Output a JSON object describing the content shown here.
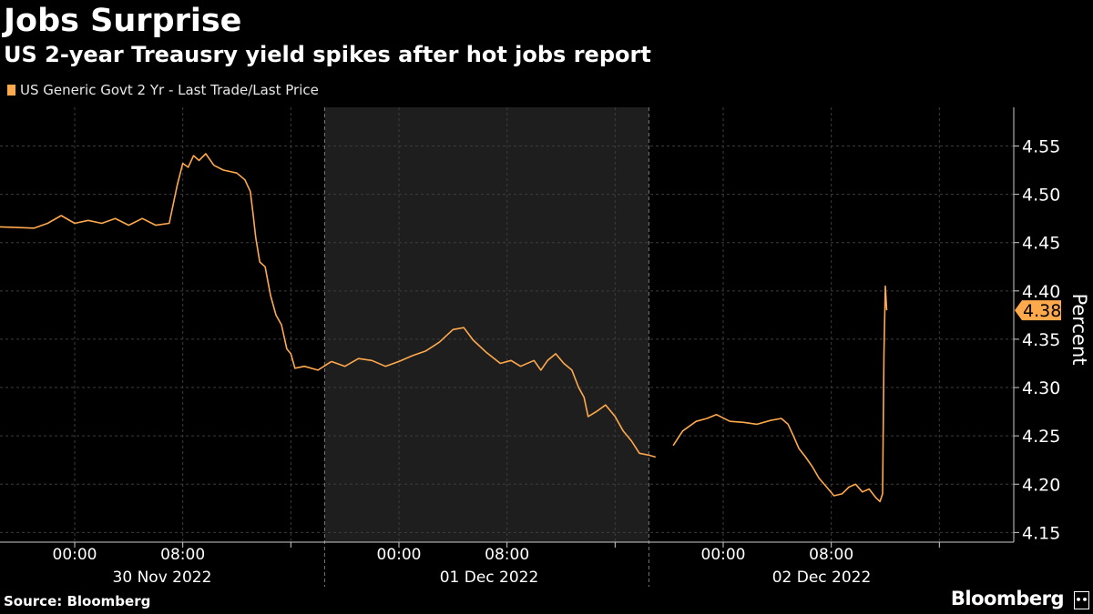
{
  "header": {
    "title": "Jobs Surprise",
    "subtitle": "US 2-year Treausry yield spikes after hot jobs report"
  },
  "footer": {
    "source": "Source: Bloomberg",
    "brand": "Bloomberg",
    "brand_mark": "••"
  },
  "colors": {
    "background": "#000000",
    "series": "#ffa94d",
    "shaded_day": "#1e1e1e",
    "grid": "#3c3c3c",
    "text": "#ffffff"
  },
  "chart_data": {
    "type": "line",
    "title": "Jobs Surprise",
    "subtitle": "US 2-year Treausry yield spikes after hot jobs report",
    "ylabel": "Percent",
    "ylim": [
      4.14,
      4.59
    ],
    "y_ticks": [
      "4.15",
      "4.20",
      "4.25",
      "4.30",
      "4.35",
      "4.40",
      "4.45",
      "4.50",
      "4.55"
    ],
    "x_ticks": [
      {
        "label": "00:00",
        "day": "30 Nov 2022"
      },
      {
        "label": "08:00",
        "day": "30 Nov 2022"
      },
      {
        "label": "00:00",
        "day": "01 Dec 2022"
      },
      {
        "label": "08:00",
        "day": "01 Dec 2022"
      },
      {
        "label": "00:00",
        "day": "02 Dec 2022"
      },
      {
        "label": "08:00",
        "day": "02 Dec 2022"
      }
    ],
    "day_labels": [
      "30 Nov 2022",
      "01 Dec 2022",
      "02 Dec 2022"
    ],
    "shaded_day": "01 Dec 2022",
    "last_value_label": "4.38",
    "legend": "top-left",
    "series": [
      {
        "name": "US Generic Govt 2 Yr - Last Trade/Last Price",
        "segments": [
          [
            [
              -13,
              4.475
            ],
            [
              -11,
              4.47
            ],
            [
              -9,
              4.468
            ],
            [
              -7,
              4.467
            ],
            [
              -5,
              4.466
            ],
            [
              -3,
              4.465
            ],
            [
              -2,
              4.47
            ],
            [
              -1,
              4.478
            ],
            [
              0,
              4.47
            ],
            [
              1,
              4.473
            ],
            [
              2,
              4.47
            ],
            [
              3,
              4.475
            ],
            [
              4,
              4.468
            ],
            [
              5,
              4.475
            ],
            [
              6,
              4.468
            ],
            [
              7,
              4.47
            ],
            [
              7.6,
              4.51
            ],
            [
              8,
              4.532
            ],
            [
              8.4,
              4.528
            ],
            [
              8.8,
              4.54
            ],
            [
              9.2,
              4.535
            ],
            [
              9.7,
              4.542
            ],
            [
              10.3,
              4.53
            ],
            [
              11,
              4.525
            ],
            [
              12,
              4.522
            ],
            [
              12.6,
              4.515
            ],
            [
              13,
              4.503
            ],
            [
              13.2,
              4.48
            ],
            [
              13.4,
              4.455
            ],
            [
              13.7,
              4.43
            ],
            [
              14.1,
              4.425
            ],
            [
              14.5,
              4.395
            ],
            [
              14.9,
              4.375
            ],
            [
              15.3,
              4.365
            ],
            [
              15.7,
              4.34
            ],
            [
              16,
              4.335
            ],
            [
              16.3,
              4.32
            ],
            [
              17,
              4.322
            ],
            [
              18,
              4.318
            ],
            [
              19,
              4.327
            ]
          ],
          [
            [
              19,
              4.327
            ],
            [
              20,
              4.322
            ],
            [
              21,
              4.33
            ],
            [
              22,
              4.328
            ],
            [
              23,
              4.322
            ],
            [
              24,
              4.327
            ],
            [
              25,
              4.333
            ],
            [
              26,
              4.338
            ],
            [
              27,
              4.347
            ],
            [
              28,
              4.36
            ],
            [
              28.8,
              4.362
            ],
            [
              29.5,
              4.349
            ],
            [
              30.5,
              4.336
            ],
            [
              31.5,
              4.325
            ],
            [
              32.3,
              4.328
            ],
            [
              33,
              4.322
            ],
            [
              34,
              4.328
            ],
            [
              34.5,
              4.318
            ],
            [
              35,
              4.328
            ],
            [
              35.6,
              4.335
            ],
            [
              36.2,
              4.325
            ],
            [
              36.8,
              4.318
            ],
            [
              37.3,
              4.3
            ],
            [
              37.7,
              4.29
            ],
            [
              38,
              4.27
            ],
            [
              38.6,
              4.275
            ],
            [
              39.3,
              4.282
            ],
            [
              40,
              4.27
            ],
            [
              40.6,
              4.255
            ],
            [
              41.2,
              4.245
            ],
            [
              41.8,
              4.232
            ],
            [
              42.5,
              4.23
            ],
            [
              43,
              4.228
            ]
          ],
          [
            [
              44.3,
              4.24
            ],
            [
              45,
              4.255
            ],
            [
              46,
              4.265
            ],
            [
              46.8,
              4.268
            ],
            [
              47.5,
              4.272
            ],
            [
              48.5,
              4.265
            ],
            [
              49.5,
              4.264
            ],
            [
              50.5,
              4.262
            ],
            [
              51.5,
              4.266
            ],
            [
              52.3,
              4.268
            ],
            [
              52.8,
              4.262
            ],
            [
              53.2,
              4.25
            ],
            [
              53.6,
              4.237
            ],
            [
              54.1,
              4.228
            ],
            [
              54.6,
              4.218
            ],
            [
              55.1,
              4.206
            ],
            [
              55.6,
              4.198
            ],
            [
              56.2,
              4.188
            ],
            [
              56.8,
              4.19
            ],
            [
              57.3,
              4.197
            ],
            [
              57.8,
              4.2
            ],
            [
              58.3,
              4.192
            ],
            [
              58.8,
              4.195
            ],
            [
              59.3,
              4.186
            ],
            [
              59.6,
              4.182
            ],
            [
              59.8,
              4.19
            ],
            [
              59.9,
              4.335
            ],
            [
              60,
              4.405
            ],
            [
              60.1,
              4.38
            ]
          ]
        ]
      }
    ]
  }
}
